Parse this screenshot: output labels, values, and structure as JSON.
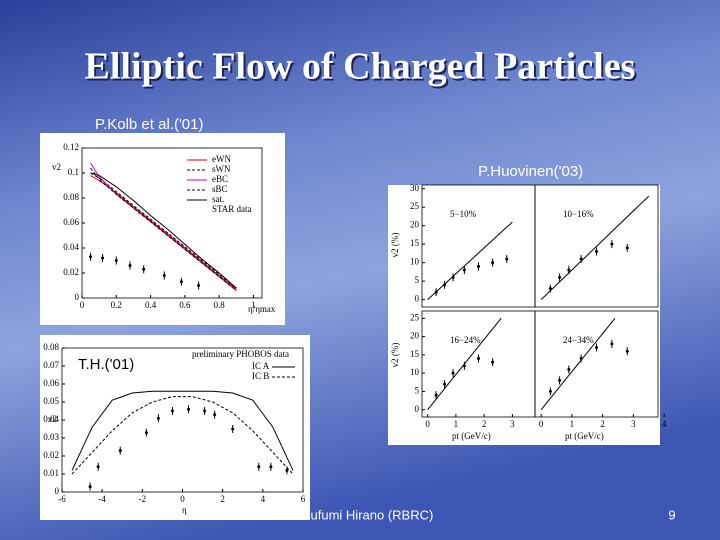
{
  "slide": {
    "title": "Elliptic Flow of Charged Particles",
    "footer": "Tetsufumi Hirano (RBRC)",
    "page_number": "9",
    "plot1": {
      "caption": "P.Kolb et al.('01)",
      "ylabel": "v2",
      "xlabel": "η/ηmax",
      "xlim": [
        0,
        1.05
      ],
      "ylim": [
        0,
        0.12
      ],
      "xticks": [
        0,
        0.2,
        0.4,
        0.6,
        0.8,
        1
      ],
      "yticks": [
        0,
        0.02,
        0.04,
        0.06,
        0.08,
        0.1,
        0.12
      ],
      "x": [
        0.05,
        0.1,
        0.2,
        0.3,
        0.4,
        0.5,
        0.6,
        0.7,
        0.8,
        0.9
      ],
      "series": [
        {
          "name": "eWN",
          "color": "#d00000",
          "values": [
            0.098,
            0.094,
            0.084,
            0.073,
            0.062,
            0.051,
            0.04,
            0.029,
            0.018,
            0.007
          ]
        },
        {
          "name": "sWN",
          "color": "#000000",
          "values": [
            0.1,
            0.096,
            0.085,
            0.074,
            0.063,
            0.052,
            0.041,
            0.03,
            0.019,
            0.008
          ]
        },
        {
          "name": "eBC",
          "color": "#c000c0",
          "values": [
            0.108,
            0.097,
            0.083,
            0.072,
            0.061,
            0.05,
            0.039,
            0.028,
            0.017,
            0.006
          ]
        },
        {
          "name": "sBC",
          "color": "#000000",
          "values": [
            0.104,
            0.095,
            0.083,
            0.072,
            0.061,
            0.05,
            0.039,
            0.028,
            0.017,
            0.006
          ]
        },
        {
          "name": "sat.",
          "color": "#000000",
          "values": [
            0.1,
            0.098,
            0.089,
            0.078,
            0.066,
            0.055,
            0.043,
            0.031,
            0.02,
            0.008
          ]
        }
      ],
      "points": {
        "name": "STAR data",
        "x": [
          0.05,
          0.12,
          0.2,
          0.28,
          0.36,
          0.48,
          0.58,
          0.68
        ],
        "values": [
          0.033,
          0.032,
          0.03,
          0.026,
          0.023,
          0.018,
          0.013,
          0.01
        ]
      }
    },
    "plot2": {
      "caption": "P.Huovinen('03)",
      "ylabel": "v2 (%)",
      "xlabel": "pt (GeV/c)",
      "xlim": [
        -0.2,
        3.8
      ],
      "ylim_upper": [
        -2,
        31
      ],
      "ylim_lower": [
        -2,
        27
      ],
      "yticks_upper": [
        0,
        5,
        10,
        15,
        20,
        25,
        30
      ],
      "yticks_lower": [
        0,
        5,
        10,
        15,
        20,
        25
      ],
      "xticks_left": [
        0,
        1,
        2,
        3
      ],
      "xticks_right": [
        0,
        1,
        2,
        3,
        4
      ],
      "panels": [
        {
          "label": "5−10%",
          "line_x": [
            0,
            3
          ],
          "line_y": [
            0,
            21
          ],
          "x": [
            0.3,
            0.6,
            0.9,
            1.3,
            1.8,
            2.3,
            2.8
          ],
          "values": [
            2,
            4,
            6,
            8,
            9,
            10,
            11
          ]
        },
        {
          "label": "10−16%",
          "line_x": [
            0,
            3.5
          ],
          "line_y": [
            0,
            28
          ],
          "x": [
            0.3,
            0.6,
            0.9,
            1.3,
            1.8,
            2.3,
            2.8
          ],
          "values": [
            3,
            6,
            8,
            11,
            13,
            15,
            14
          ]
        },
        {
          "label": "16−24%",
          "line_x": [
            0,
            2.6
          ],
          "line_y": [
            0,
            25
          ],
          "x": [
            0.3,
            0.6,
            0.9,
            1.3,
            1.8,
            2.3
          ],
          "values": [
            4,
            7,
            10,
            12,
            14,
            13
          ]
        },
        {
          "label": "24−34%",
          "line_x": [
            0,
            2.4
          ],
          "line_y": [
            0,
            25
          ],
          "x": [
            0.3,
            0.6,
            0.9,
            1.3,
            1.8,
            2.3,
            2.8
          ],
          "values": [
            5,
            8,
            11,
            14,
            17,
            18,
            16
          ]
        }
      ]
    },
    "plot3": {
      "caption": "T.H.('01)",
      "ylabel": "v2",
      "xlabel": "η",
      "xlim": [
        -6,
        6
      ],
      "ylim": [
        0,
        0.08
      ],
      "xticks": [
        -6,
        -4,
        -2,
        0,
        2,
        4,
        6
      ],
      "yticks": [
        0,
        0.01,
        0.02,
        0.03,
        0.04,
        0.05,
        0.06,
        0.07,
        0.08
      ],
      "x": [
        -5.5,
        -4.5,
        -3.5,
        -2.5,
        -1.5,
        -0.5,
        0.5,
        1.5,
        2.5,
        3.5,
        4.5,
        5.5
      ],
      "series": [
        {
          "name": "IC A",
          "color": "#000000",
          "dash": false,
          "values": [
            0.012,
            0.036,
            0.051,
            0.055,
            0.056,
            0.056,
            0.056,
            0.056,
            0.055,
            0.051,
            0.036,
            0.012
          ]
        },
        {
          "name": "IC B",
          "color": "#000000",
          "dash": true,
          "values": [
            0.01,
            0.022,
            0.034,
            0.044,
            0.05,
            0.053,
            0.053,
            0.05,
            0.044,
            0.034,
            0.022,
            0.01
          ]
        }
      ],
      "points": {
        "name": "preliminary PHOBOS data",
        "x": [
          -4.6,
          -4.2,
          -3.1,
          -1.8,
          -1.2,
          -0.5,
          0.3,
          1.1,
          1.6,
          2.5,
          3.8,
          4.4,
          5.2
        ],
        "values": [
          0.003,
          0.014,
          0.023,
          0.033,
          0.041,
          0.045,
          0.046,
          0.045,
          0.043,
          0.035,
          0.014,
          0.014,
          0.012
        ]
      }
    }
  }
}
